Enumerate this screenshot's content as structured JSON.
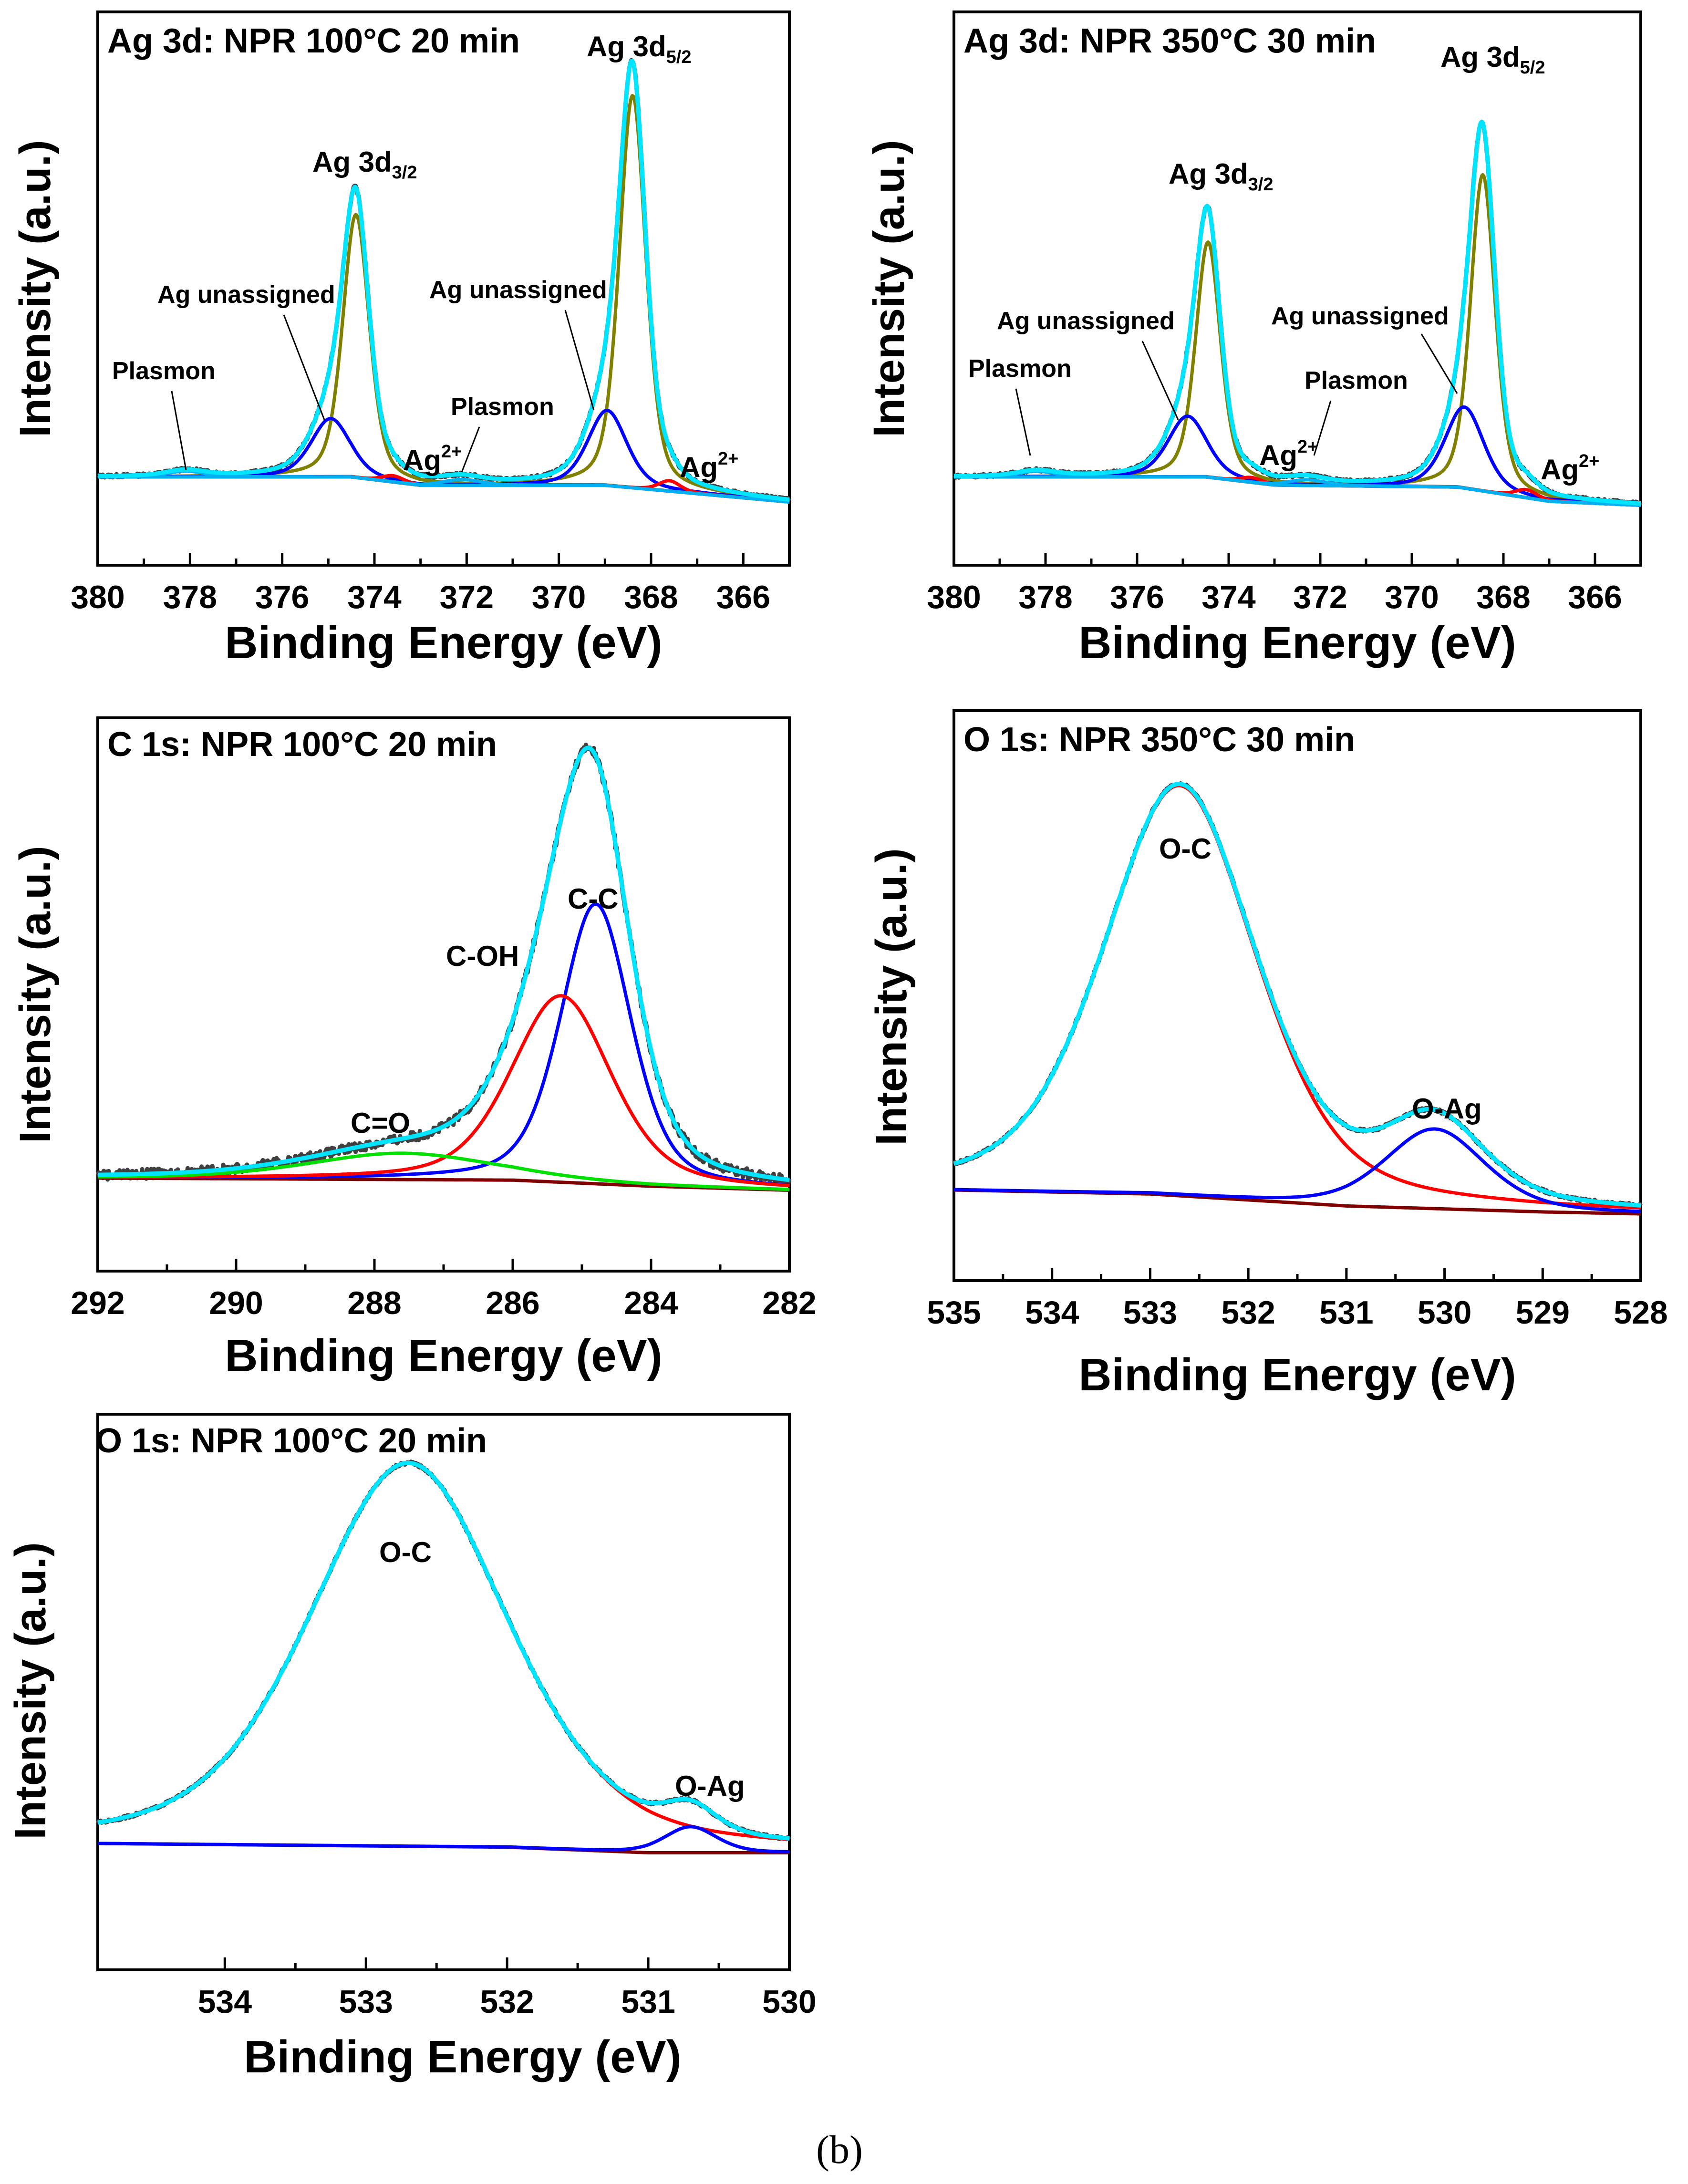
{
  "figure": {
    "caption": "(b)"
  },
  "chart_data": [
    {
      "type": "line",
      "title": "Ag 3d: NPR 100°C 20 min",
      "xlabel": "Binding Energy (eV)",
      "ylabel": "Intensity (a.u.)",
      "xlim": [
        380,
        365
      ],
      "ylim": [
        -0.18,
        1.0
      ],
      "xticks": [
        380,
        378,
        376,
        374,
        372,
        370,
        368,
        366
      ],
      "background": {
        "x": [
          380,
          374.5,
          373,
          369,
          365
        ],
        "y": [
          0,
          0,
          -0.02,
          -0.02,
          -0.06
        ]
      },
      "series": [
        {
          "name": "Ag 3d5/2",
          "color": "#808000",
          "peaks": [
            {
              "center": 368.4,
              "amp": 0.94,
              "width": 0.34
            }
          ]
        },
        {
          "name": "Ag 3d3/2",
          "color": "#808000",
          "peaks": [
            {
              "center": 374.4,
              "amp": 0.63,
              "width": 0.34
            }
          ]
        },
        {
          "name": "Ag unassigned",
          "color": "#0000ff",
          "peaks": [
            {
              "center": 368.95,
              "amp": 0.18,
              "width": 0.5
            },
            {
              "center": 374.95,
              "amp": 0.14,
              "width": 0.5
            }
          ]
        },
        {
          "name": "Ag2+",
          "color": "#ff0000",
          "peaks": [
            {
              "center": 367.6,
              "amp": 0.025,
              "width": 0.28
            },
            {
              "center": 373.6,
              "amp": 0.015,
              "width": 0.28
            }
          ]
        },
        {
          "name": "Plasmon",
          "color": "#00b0f0",
          "peaks": [
            {
              "center": 378.1,
              "amp": 0.014,
              "width": 0.5
            },
            {
              "center": 372.1,
              "amp": 0.014,
              "width": 0.5
            }
          ]
        },
        {
          "name": "Fit envelope",
          "color": "#00ffff"
        }
      ],
      "annotations": [
        {
          "label": "Ag 3d",
          "sub": "5/2"
        },
        {
          "label": "Ag 3d",
          "sub": "3/2"
        },
        {
          "label": "Ag unassigned"
        },
        {
          "label": "Ag unassigned"
        },
        {
          "label": "Plasmon"
        },
        {
          "label": "Plasmon"
        },
        {
          "label": "Ag",
          "sup": "2+"
        },
        {
          "label": "Ag",
          "sup": "2+"
        }
      ]
    },
    {
      "type": "line",
      "title": "Ag 3d: NPR 350°C 30 min",
      "xlabel": "Binding Energy (eV)",
      "ylabel": "Intensity (a.u.)",
      "xlim": [
        380,
        365
      ],
      "ylim": [
        -0.18,
        1.0
      ],
      "xticks": [
        380,
        378,
        376,
        374,
        372,
        370,
        368,
        366
      ],
      "background": {
        "x": [
          380,
          374.5,
          373,
          369,
          367,
          365
        ],
        "y": [
          0,
          0,
          -0.02,
          -0.025,
          -0.06,
          -0.07
        ]
      },
      "series": [
        {
          "name": "Ag 3d5/2",
          "color": "#808000",
          "peaks": [
            {
              "center": 368.45,
              "amp": 0.78,
              "width": 0.32
            }
          ]
        },
        {
          "name": "Ag 3d3/2",
          "color": "#808000",
          "peaks": [
            {
              "center": 374.45,
              "amp": 0.58,
              "width": 0.32
            }
          ]
        },
        {
          "name": "Ag unassigned",
          "color": "#0000ff",
          "peaks": [
            {
              "center": 368.85,
              "amp": 0.2,
              "width": 0.5
            },
            {
              "center": 374.9,
              "amp": 0.15,
              "width": 0.5
            }
          ]
        },
        {
          "name": "Ag2+",
          "color": "#ff0000",
          "peaks": [
            {
              "center": 367.5,
              "amp": 0.02,
              "width": 0.28
            },
            {
              "center": 373.5,
              "amp": 0.012,
              "width": 0.28
            }
          ]
        },
        {
          "name": "Plasmon",
          "color": "#00b0f0",
          "peaks": [
            {
              "center": 378.2,
              "amp": 0.014,
              "width": 0.5
            },
            {
              "center": 372.3,
              "amp": 0.014,
              "width": 0.5
            }
          ]
        },
        {
          "name": "Fit envelope",
          "color": "#00ffff"
        }
      ],
      "annotations": [
        {
          "label": "Ag 3d",
          "sub": "5/2"
        },
        {
          "label": "Ag 3d",
          "sub": "3/2"
        },
        {
          "label": "Ag unassigned"
        },
        {
          "label": "Ag unassigned"
        },
        {
          "label": "Plasmon"
        },
        {
          "label": "Plasmon"
        },
        {
          "label": "Ag",
          "sup": "2+"
        },
        {
          "label": "Ag",
          "sup": "2+"
        }
      ]
    },
    {
      "type": "line",
      "title": "C 1s: NPR 100°C 20 min",
      "xlabel": "Binding Energy (eV)",
      "ylabel": "Intensity (a.u.)",
      "xlim": [
        292,
        282
      ],
      "ylim": [
        -0.22,
        1.0
      ],
      "xticks": [
        292,
        290,
        288,
        286,
        284,
        282
      ],
      "background": {
        "x": [
          292,
          286,
          284,
          282
        ],
        "y": [
          0,
          -0.005,
          -0.02,
          -0.03
        ]
      },
      "series": [
        {
          "name": "C-C",
          "color": "#0000ff",
          "peaks": [
            {
              "center": 284.8,
              "amp": 0.69,
              "width": 0.6
            }
          ]
        },
        {
          "name": "C-OH",
          "color": "#ff0000",
          "peaks": [
            {
              "center": 285.3,
              "amp": 0.46,
              "width": 0.85
            }
          ]
        },
        {
          "name": "C=O",
          "color": "#00e000",
          "peaks": [
            {
              "center": 287.6,
              "amp": 0.065,
              "width": 1.6
            }
          ]
        },
        {
          "name": "Fit envelope",
          "color": "#00ffff"
        }
      ],
      "annotations": [
        {
          "label": "C-C"
        },
        {
          "label": "C-OH"
        },
        {
          "label": "C=O"
        }
      ]
    },
    {
      "type": "line",
      "title": "O 1s: NPR 350°C 30 min",
      "xlabel": "Binding Energy (eV)",
      "ylabel": "Intensity (a.u.)",
      "xlim": [
        535,
        528
      ],
      "ylim": [
        -0.13,
        1.0
      ],
      "xticks": [
        535,
        534,
        533,
        532,
        531,
        530,
        529,
        528
      ],
      "background": {
        "x": [
          535,
          533,
          531,
          529,
          528
        ],
        "y": [
          0,
          -0.01,
          -0.04,
          -0.055,
          -0.06
        ]
      },
      "series": [
        {
          "name": "O-C",
          "color": "#ff0000",
          "peaks": [
            {
              "center": 532.7,
              "amp": 1.03,
              "width": 0.92
            }
          ]
        },
        {
          "name": "O-Ag",
          "color": "#0000ff",
          "peaks": [
            {
              "center": 530.1,
              "amp": 0.2,
              "width": 0.6
            }
          ]
        },
        {
          "name": "Fit envelope",
          "color": "#00ffff"
        }
      ],
      "annotations": [
        {
          "label": "O-C"
        },
        {
          "label": "O-Ag"
        }
      ]
    },
    {
      "type": "line",
      "title": "O 1s: NPR 100°C 20 min",
      "xlabel": "Binding Energy (eV)",
      "ylabel": "Intensity (a.u.)",
      "xlim": [
        534.9,
        530
      ],
      "ylim": [
        -0.2,
        1.0
      ],
      "xticks": [
        534,
        533,
        532,
        531,
        530
      ],
      "background": {
        "x": [
          534.9,
          532,
          531,
          530
        ],
        "y": [
          0,
          -0.01,
          -0.025,
          -0.025
        ]
      },
      "series": [
        {
          "name": "O-C",
          "color": "#ff0000",
          "peaks": [
            {
              "center": 532.7,
              "amp": 1.03,
              "width": 0.83
            }
          ]
        },
        {
          "name": "O-Ag",
          "color": "#0000ff",
          "peaks": [
            {
              "center": 530.7,
              "amp": 0.07,
              "width": 0.22
            }
          ]
        },
        {
          "name": "Fit envelope",
          "color": "#00ffff"
        }
      ],
      "annotations": [
        {
          "label": "O-C"
        },
        {
          "label": "O-Ag"
        }
      ]
    }
  ]
}
